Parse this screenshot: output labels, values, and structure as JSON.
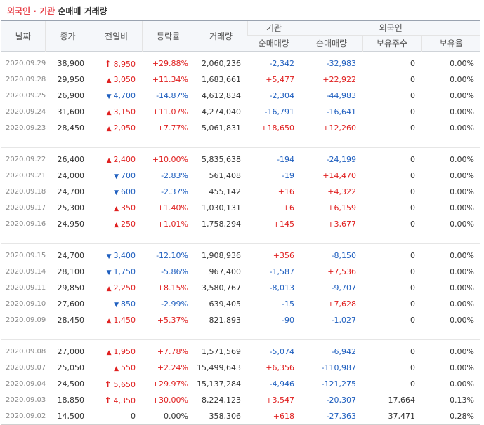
{
  "title": {
    "part1": "외국인 · 기관",
    "part2": "순매매 거래량"
  },
  "headers": {
    "date": "날짜",
    "close": "종가",
    "change": "전일비",
    "rate": "등락률",
    "volume": "거래량",
    "inst": "기관",
    "foreign": "외국인",
    "inst_net": "순매매량",
    "for_net": "순매매량",
    "for_hold": "보유주수",
    "for_ratio": "보유율"
  },
  "groups": [
    [
      {
        "date": "2020.09.29",
        "close": "38,900",
        "dir": "upper",
        "change": "8,950",
        "rate": "+29.88%",
        "volume": "2,060,236",
        "inst": "-2,342",
        "foreign": "-32,983",
        "hold": "0",
        "ratio": "0.00%"
      },
      {
        "date": "2020.09.28",
        "close": "29,950",
        "dir": "up",
        "change": "3,050",
        "rate": "+11.34%",
        "volume": "1,683,661",
        "inst": "+5,477",
        "foreign": "+22,922",
        "hold": "0",
        "ratio": "0.00%"
      },
      {
        "date": "2020.09.25",
        "close": "26,900",
        "dir": "down",
        "change": "4,700",
        "rate": "-14.87%",
        "volume": "4,612,834",
        "inst": "-2,304",
        "foreign": "-44,983",
        "hold": "0",
        "ratio": "0.00%"
      },
      {
        "date": "2020.09.24",
        "close": "31,600",
        "dir": "up",
        "change": "3,150",
        "rate": "+11.07%",
        "volume": "4,274,040",
        "inst": "-16,791",
        "foreign": "-16,641",
        "hold": "0",
        "ratio": "0.00%"
      },
      {
        "date": "2020.09.23",
        "close": "28,450",
        "dir": "up",
        "change": "2,050",
        "rate": "+7.77%",
        "volume": "5,061,831",
        "inst": "+18,650",
        "foreign": "+12,260",
        "hold": "0",
        "ratio": "0.00%"
      }
    ],
    [
      {
        "date": "2020.09.22",
        "close": "26,400",
        "dir": "up",
        "change": "2,400",
        "rate": "+10.00%",
        "volume": "5,835,638",
        "inst": "-194",
        "foreign": "-24,199",
        "hold": "0",
        "ratio": "0.00%"
      },
      {
        "date": "2020.09.21",
        "close": "24,000",
        "dir": "down",
        "change": "700",
        "rate": "-2.83%",
        "volume": "561,408",
        "inst": "-19",
        "foreign": "+14,470",
        "hold": "0",
        "ratio": "0.00%"
      },
      {
        "date": "2020.09.18",
        "close": "24,700",
        "dir": "down",
        "change": "600",
        "rate": "-2.37%",
        "volume": "455,142",
        "inst": "+16",
        "foreign": "+4,322",
        "hold": "0",
        "ratio": "0.00%"
      },
      {
        "date": "2020.09.17",
        "close": "25,300",
        "dir": "up",
        "change": "350",
        "rate": "+1.40%",
        "volume": "1,030,131",
        "inst": "+6",
        "foreign": "+6,159",
        "hold": "0",
        "ratio": "0.00%"
      },
      {
        "date": "2020.09.16",
        "close": "24,950",
        "dir": "up",
        "change": "250",
        "rate": "+1.01%",
        "volume": "1,758,294",
        "inst": "+145",
        "foreign": "+3,677",
        "hold": "0",
        "ratio": "0.00%"
      }
    ],
    [
      {
        "date": "2020.09.15",
        "close": "24,700",
        "dir": "down",
        "change": "3,400",
        "rate": "-12.10%",
        "volume": "1,908,936",
        "inst": "+356",
        "foreign": "-8,150",
        "hold": "0",
        "ratio": "0.00%"
      },
      {
        "date": "2020.09.14",
        "close": "28,100",
        "dir": "down",
        "change": "1,750",
        "rate": "-5.86%",
        "volume": "967,400",
        "inst": "-1,587",
        "foreign": "+7,536",
        "hold": "0",
        "ratio": "0.00%"
      },
      {
        "date": "2020.09.11",
        "close": "29,850",
        "dir": "up",
        "change": "2,250",
        "rate": "+8.15%",
        "volume": "3,580,767",
        "inst": "-8,013",
        "foreign": "-9,707",
        "hold": "0",
        "ratio": "0.00%"
      },
      {
        "date": "2020.09.10",
        "close": "27,600",
        "dir": "down",
        "change": "850",
        "rate": "-2.99%",
        "volume": "639,405",
        "inst": "-15",
        "foreign": "+7,628",
        "hold": "0",
        "ratio": "0.00%"
      },
      {
        "date": "2020.09.09",
        "close": "28,450",
        "dir": "up",
        "change": "1,450",
        "rate": "+5.37%",
        "volume": "821,893",
        "inst": "-90",
        "foreign": "-1,027",
        "hold": "0",
        "ratio": "0.00%"
      }
    ],
    [
      {
        "date": "2020.09.08",
        "close": "27,000",
        "dir": "up",
        "change": "1,950",
        "rate": "+7.78%",
        "volume": "1,571,569",
        "inst": "-5,074",
        "foreign": "-6,942",
        "hold": "0",
        "ratio": "0.00%"
      },
      {
        "date": "2020.09.07",
        "close": "25,050",
        "dir": "up",
        "change": "550",
        "rate": "+2.24%",
        "volume": "15,499,643",
        "inst": "+6,356",
        "foreign": "-110,987",
        "hold": "0",
        "ratio": "0.00%"
      },
      {
        "date": "2020.09.04",
        "close": "24,500",
        "dir": "upper",
        "change": "5,650",
        "rate": "+29.97%",
        "volume": "15,137,284",
        "inst": "-4,946",
        "foreign": "-121,275",
        "hold": "0",
        "ratio": "0.00%"
      },
      {
        "date": "2020.09.03",
        "close": "18,850",
        "dir": "upper",
        "change": "4,350",
        "rate": "+30.00%",
        "volume": "8,224,123",
        "inst": "+3,547",
        "foreign": "-20,307",
        "hold": "17,664",
        "ratio": "0.13%"
      },
      {
        "date": "2020.09.02",
        "close": "14,500",
        "dir": "none",
        "change": "0",
        "rate": "0.00%",
        "volume": "358,306",
        "inst": "+618",
        "foreign": "-27,363",
        "hold": "37,471",
        "ratio": "0.28%"
      }
    ]
  ]
}
